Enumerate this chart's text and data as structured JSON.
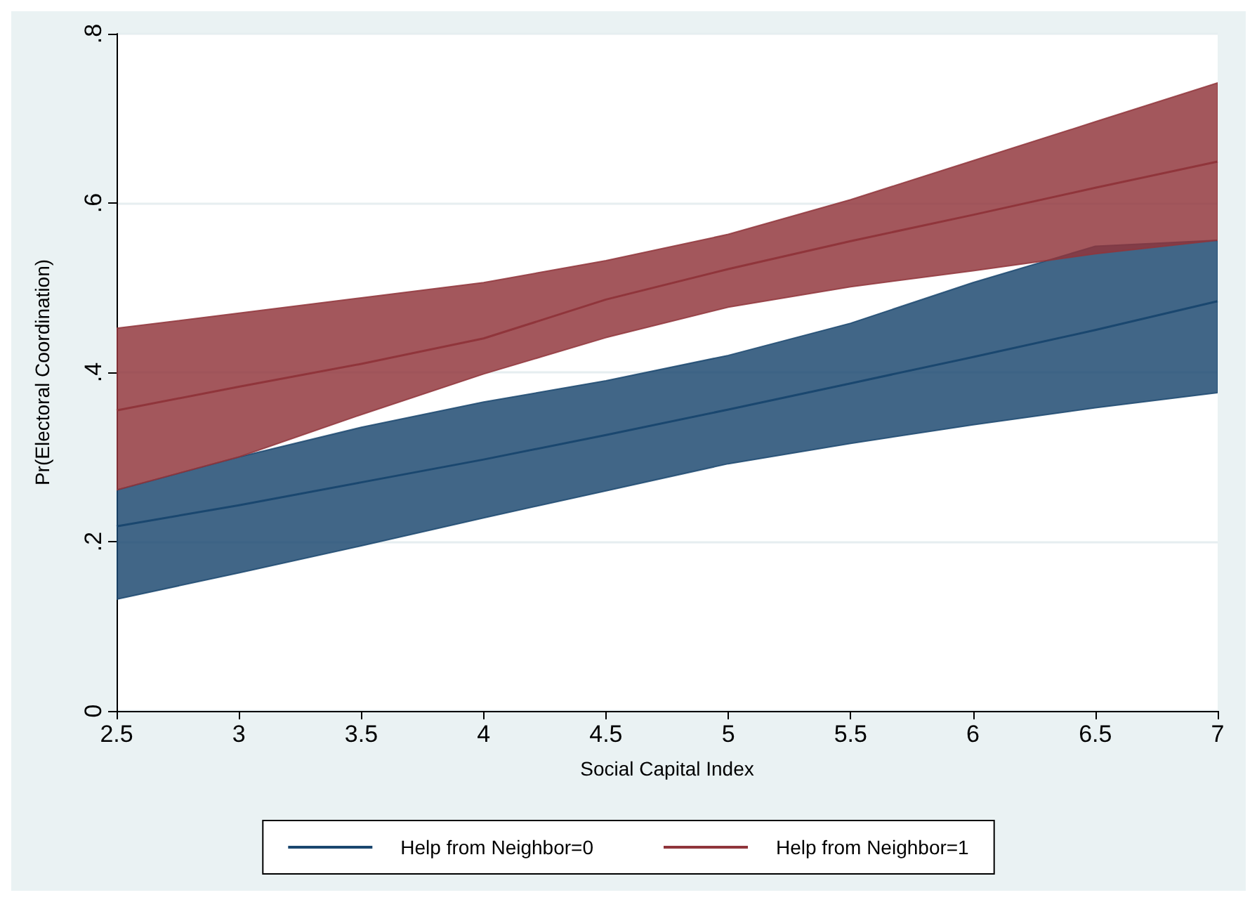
{
  "chart_data": {
    "type": "line",
    "xlabel": "Social Capital Index",
    "ylabel": "Pr(Electoral Coordination)",
    "x": [
      2.5,
      3,
      3.5,
      4,
      4.5,
      5,
      5.5,
      6,
      6.5,
      7
    ],
    "series": [
      {
        "name": "Help from Neighbor=0",
        "color": "#1a476f",
        "values": [
          0.218,
          0.243,
          0.27,
          0.297,
          0.326,
          0.356,
          0.387,
          0.418,
          0.45,
          0.484
        ],
        "lower": [
          0.132,
          0.163,
          0.195,
          0.228,
          0.26,
          0.292,
          0.316,
          0.338,
          0.358,
          0.376
        ],
        "upper": [
          0.261,
          0.3,
          0.335,
          0.365,
          0.39,
          0.42,
          0.458,
          0.506,
          0.549,
          0.556
        ]
      },
      {
        "name": "Help from Neighbor=1",
        "color": "#90353b",
        "values": [
          0.355,
          0.383,
          0.41,
          0.44,
          0.486,
          0.522,
          0.555,
          0.586,
          0.618,
          0.649
        ],
        "lower": [
          0.261,
          0.3,
          0.35,
          0.398,
          0.441,
          0.477,
          0.501,
          0.52,
          0.54,
          0.556
        ],
        "upper": [
          0.452,
          0.47,
          0.488,
          0.506,
          0.532,
          0.563,
          0.604,
          0.65,
          0.696,
          0.742
        ]
      }
    ],
    "xlim": [
      2.5,
      7
    ],
    "xticks": [
      2.5,
      3,
      3.5,
      4,
      4.5,
      5,
      5.5,
      6,
      6.5,
      7
    ],
    "ylim": [
      0,
      0.8
    ],
    "yticks": [
      {
        "value": 0,
        "label": "0"
      },
      {
        "value": 0.2,
        "label": ".2"
      },
      {
        "value": 0.4,
        "label": ".4"
      },
      {
        "value": 0.6,
        "label": ".6"
      },
      {
        "value": 0.8,
        "label": ".8"
      }
    ],
    "grid": "y",
    "legend": "bottom",
    "line_style": "solid",
    "marker": "none"
  }
}
